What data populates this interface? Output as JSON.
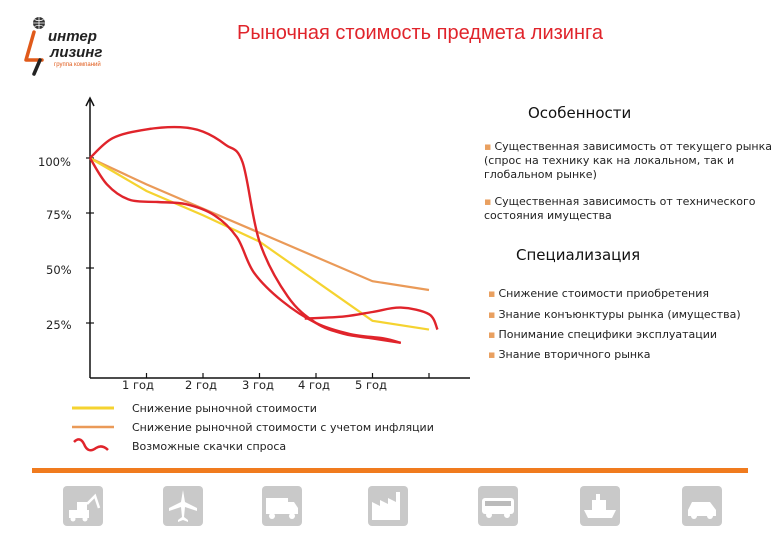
{
  "logo": {
    "line1": "интер",
    "line2": "лизинг",
    "sub": "группа компаний",
    "icon": "globe-icon"
  },
  "title": "Рыночная стоимость предмета лизинга",
  "features": {
    "heading": "Особенности",
    "items": [
      "Существенная зависимость от текущего рынка (спрос на технику как на локальном, так и глобальном рынке)",
      "Существенная зависимость от технического состояния имущества"
    ]
  },
  "specialization": {
    "heading": "Специализация",
    "items": [
      "Снижение стоимости приобретения",
      "Знание конъюнктуры рынка (имущества)",
      "Понимание специфики эксплуатации",
      "Знание вторичного рынка"
    ]
  },
  "colors": {
    "accent": "#e0242b",
    "yellow": "#f5d330",
    "orange": "#ea9a58",
    "red": "#e0242b",
    "bar": "#f07b1e"
  },
  "chart_data": {
    "type": "line",
    "title": "",
    "xlabel": "",
    "ylabel": "",
    "x_ticks": [
      "1 год",
      "2 год",
      "3 год",
      "4 год",
      "5 год"
    ],
    "y_ticks": [
      "100%",
      "75%",
      "50%",
      "25%"
    ],
    "y_tick_values": [
      100,
      75,
      50,
      25
    ],
    "x_range": [
      0,
      6
    ],
    "y_range": [
      0,
      125
    ],
    "grid": false,
    "series": [
      {
        "name": "Снижение рыночной стоимости",
        "color": "#f5d330",
        "x": [
          0,
          1,
          2,
          3,
          4,
          5,
          6
        ],
        "y": [
          100,
          85,
          74,
          62,
          44,
          26,
          22
        ]
      },
      {
        "name": "Снижение рыночной стоимости с учетом инфляции",
        "color": "#ea9a58",
        "x": [
          0,
          1,
          2,
          3,
          4,
          5,
          6
        ],
        "y": [
          100,
          88,
          77,
          66,
          55,
          44,
          40
        ]
      }
    ],
    "demand_jumps": {
      "name": "Возможные скачки спроса",
      "color": "#e0242b",
      "upper": {
        "x": [
          0,
          0.4,
          1,
          1.6,
          2,
          2.4,
          2.7,
          3,
          3.5,
          4,
          4.5,
          5,
          5.5
        ],
        "y": [
          100,
          109,
          113,
          114,
          112,
          106,
          98,
          62,
          37,
          25,
          20,
          18,
          16
        ]
      },
      "lower": {
        "x": [
          0,
          0.3,
          0.7,
          1.2,
          1.7,
          2.2,
          2.6,
          2.9,
          3.4,
          4,
          4.6,
          5.2,
          5.5
        ],
        "y": [
          100,
          88,
          81,
          80,
          79,
          74,
          64,
          48,
          35,
          25,
          20,
          18,
          16
        ]
      },
      "tail": {
        "x": [
          3.8,
          4.5,
          5,
          5.5,
          6,
          6.15
        ],
        "y": [
          27,
          28,
          30,
          32,
          29,
          22
        ]
      }
    }
  },
  "footer": {
    "icons": [
      "excavator-icon",
      "airplane-icon",
      "truck-icon",
      "factory-icon",
      "trailer-truck-icon",
      "bus-icon",
      "ship-icon",
      "car-icon"
    ]
  }
}
